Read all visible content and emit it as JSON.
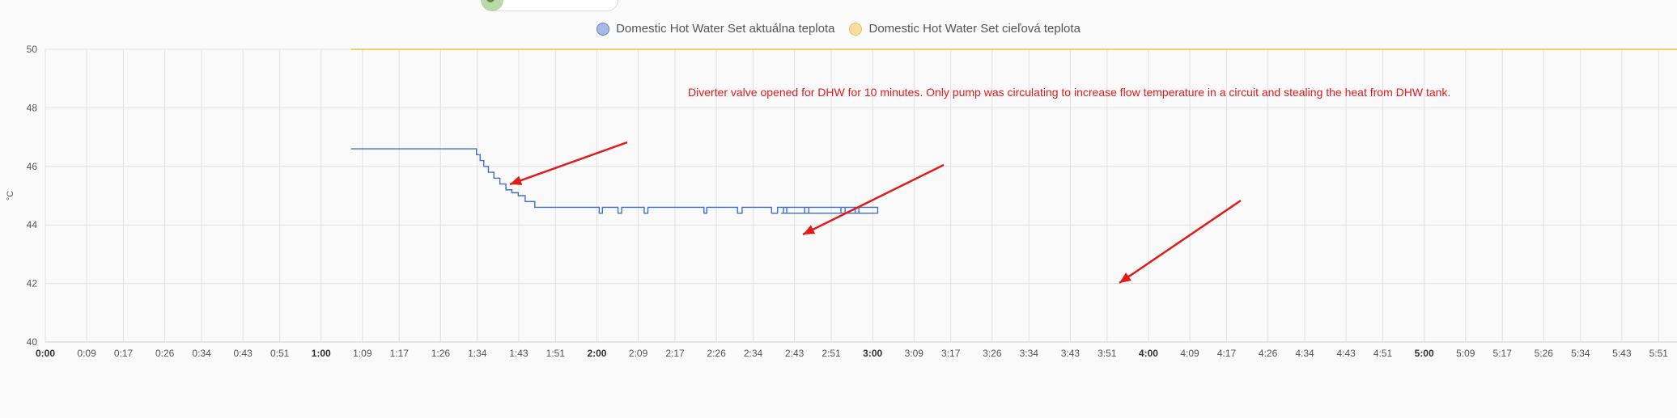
{
  "legend": [
    {
      "label": "Domestic Hot Water Set aktuálna teplota",
      "fill": "#a9b9e6",
      "stroke": "#5b7fd0"
    },
    {
      "label": "Domestic Hot Water Set cieľová teplota",
      "fill": "#f8dca0",
      "stroke": "#e8c060"
    }
  ],
  "annotation": "Diverter valve opened for DHW for 10 minutes. Only pump was circulating to increase flow temperature in a circuit and stealing the heat from DHW tank.",
  "colors": {
    "actual": "#3f6fd1",
    "target": "#f0c040",
    "arrow": "#e31a1a",
    "grid": "#e2e2e2",
    "text": "#555555"
  },
  "chart_data": {
    "type": "line",
    "ylabel": "°C",
    "ylim": [
      40,
      50
    ],
    "yticks": [
      40,
      42,
      44,
      46,
      48,
      50
    ],
    "xlim_minutes": [
      0,
      355
    ],
    "xticks": [
      {
        "label": "0:00",
        "bold": true
      },
      {
        "label": "0:09"
      },
      {
        "label": "0:17"
      },
      {
        "label": "0:26"
      },
      {
        "label": "0:34"
      },
      {
        "label": "0:43"
      },
      {
        "label": "0:51"
      },
      {
        "label": "1:00",
        "bold": true
      },
      {
        "label": "1:09"
      },
      {
        "label": "1:17"
      },
      {
        "label": "1:26"
      },
      {
        "label": "1:34"
      },
      {
        "label": "1:43"
      },
      {
        "label": "1:51"
      },
      {
        "label": "2:00",
        "bold": true
      },
      {
        "label": "2:09"
      },
      {
        "label": "2:17"
      },
      {
        "label": "2:26"
      },
      {
        "label": "2:34"
      },
      {
        "label": "2:43"
      },
      {
        "label": "2:51"
      },
      {
        "label": "3:00",
        "bold": true
      },
      {
        "label": "3:09"
      },
      {
        "label": "3:17"
      },
      {
        "label": "3:26"
      },
      {
        "label": "3:34"
      },
      {
        "label": "3:43"
      },
      {
        "label": "3:51"
      },
      {
        "label": "4:00",
        "bold": true
      },
      {
        "label": "4:09"
      },
      {
        "label": "4:17"
      },
      {
        "label": "4:26"
      },
      {
        "label": "4:34"
      },
      {
        "label": "4:43"
      },
      {
        "label": "4:51"
      },
      {
        "label": "5:00",
        "bold": true
      },
      {
        "label": "5:09"
      },
      {
        "label": "5:17"
      },
      {
        "label": "5:26"
      },
      {
        "label": "5:34"
      },
      {
        "label": "5:43"
      },
      {
        "label": "5:51"
      }
    ],
    "series": [
      {
        "name": "Domestic Hot Water Set aktuálna teplota",
        "step": true,
        "points": [
          [
            66.5,
            46.6
          ],
          [
            93.2,
            46.6
          ],
          [
            93.8,
            46.4
          ],
          [
            94.6,
            46.2
          ],
          [
            95.4,
            46.0
          ],
          [
            96.4,
            45.8
          ],
          [
            97.6,
            45.6
          ],
          [
            98.9,
            45.4
          ],
          [
            100.2,
            45.2
          ],
          [
            101.5,
            45.1
          ],
          [
            102.9,
            45.0
          ],
          [
            104.4,
            44.8
          ],
          [
            106.5,
            44.6
          ],
          [
            120,
            44.6
          ],
          [
            120.5,
            44.4
          ],
          [
            121.2,
            44.6
          ],
          [
            124.2,
            44.6
          ],
          [
            124.6,
            44.4
          ],
          [
            125.4,
            44.6
          ],
          [
            129.8,
            44.6
          ],
          [
            130.3,
            44.4
          ],
          [
            131.1,
            44.6
          ],
          [
            142.8,
            44.6
          ],
          [
            143.3,
            44.4
          ],
          [
            143.9,
            44.6
          ],
          [
            150.2,
            44.6
          ],
          [
            150.6,
            44.4
          ],
          [
            151.6,
            44.6
          ],
          [
            157.6,
            44.6
          ],
          [
            158.0,
            44.4
          ],
          [
            159.3,
            44.6
          ],
          [
            160.2,
            44.6
          ],
          [
            160.6,
            44.4
          ],
          [
            161.3,
            44.6
          ],
          [
            164.8,
            44.6
          ],
          [
            165.2,
            44.4
          ],
          [
            166.1,
            44.6
          ],
          [
            172.6,
            44.6
          ],
          [
            173.1,
            44.4
          ],
          [
            174.0,
            44.6
          ],
          [
            176.0,
            44.6
          ],
          [
            176.2,
            44.4
          ],
          [
            177.0,
            44.6
          ],
          [
            160.0,
            44.6
          ],
          [
            181.1,
            44.4
          ],
          [
            160.1,
            44.4
          ],
          [
            161.0,
            44.4
          ]
        ]
      },
      {
        "name": "Domestic Hot Water Set cieľová teplota",
        "step": true,
        "points": [
          [
            66.5,
            50
          ],
          [
            355,
            50
          ]
        ]
      }
    ]
  }
}
